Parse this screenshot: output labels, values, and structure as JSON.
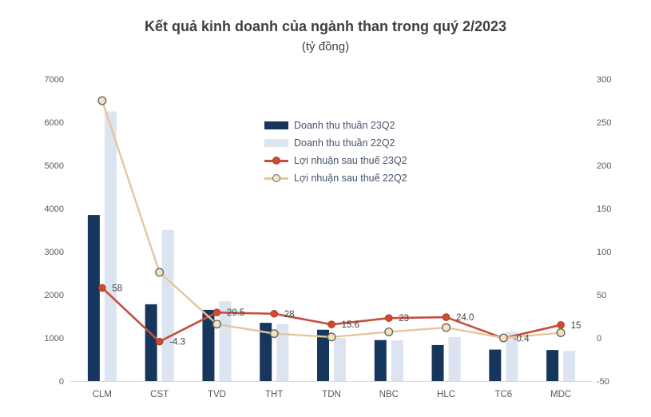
{
  "chart_data": {
    "type": "combo-bar-line",
    "title": "Kết quả kinh doanh của ngành than trong quý 2/2023",
    "subtitle": "(tỷ đồng)",
    "categories": [
      "CLM",
      "CST",
      "TVD",
      "THT",
      "TDN",
      "NBC",
      "HLC",
      "TC6",
      "MDC"
    ],
    "bar_series": [
      {
        "id": "doanh-thu-thuan-23q2",
        "name": "Doanh thu thuần 23Q2",
        "color": "#17365d",
        "values": [
          3850,
          1780,
          1650,
          1350,
          1190,
          950,
          835,
          730,
          720
        ]
      },
      {
        "id": "doanh-thu-thuan-22q2",
        "name": "Doanh thu thuần 22Q2",
        "color": "#dbe4f0",
        "values": [
          6250,
          3500,
          1850,
          1320,
          1000,
          940,
          1020,
          1140,
          700
        ]
      }
    ],
    "line_series": [
      {
        "id": "loi-nhuan-sau-thue-23q2",
        "name": "Lợi nhuận sau thuế 23Q2",
        "color": "#c44f3c",
        "marker_fill": "#d54a2d",
        "marker_stroke": "#a73a2a",
        "values": [
          58,
          -4.3,
          29.5,
          28,
          15.6,
          23,
          24,
          -0.4,
          15
        ],
        "labels": [
          "58",
          "-4.3",
          "29.5",
          "28",
          "15.6",
          "23",
          "24.0",
          "-0.4",
          "15"
        ]
      },
      {
        "id": "loi-nhuan-sau-thue-22q2",
        "name": "Lợi nhuận sau thuế 22Q2",
        "color": "#e8c49d",
        "marker_fill": "#f1e3c5",
        "marker_stroke": "#6e6855",
        "values": [
          275,
          76,
          16,
          5,
          1,
          7,
          12,
          0,
          6
        ],
        "labels": []
      }
    ],
    "left_axis": {
      "min": 0,
      "max": 7000,
      "step": 1000
    },
    "right_axis": {
      "min": -50,
      "max": 300,
      "step": 50
    },
    "legend_position": "inside-top-center",
    "grid": false,
    "colors": {
      "axis_line": "#d9d9d9",
      "tick_text": "#595959",
      "data_label_text": "#404040",
      "legend_text": "#44546a",
      "title_text": "#3f3f3f"
    }
  }
}
